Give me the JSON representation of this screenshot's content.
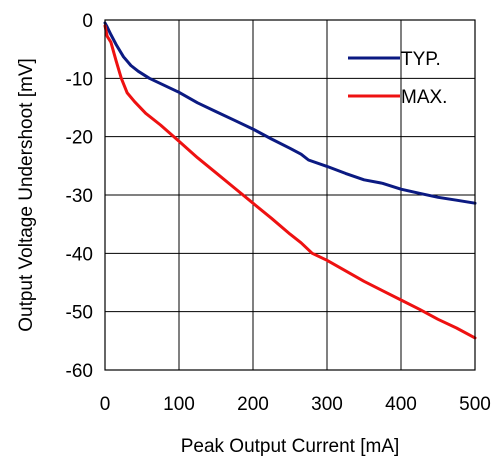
{
  "chart_data": {
    "type": "line",
    "title": "",
    "xlabel": "Peak Output Current [mA]",
    "ylabel": "Output Voltage Undershoot [mV]",
    "xlim": [
      0,
      500
    ],
    "ylim": [
      -60,
      0
    ],
    "xticks": [
      "0",
      "100",
      "200",
      "300",
      "400",
      "500"
    ],
    "yticks": [
      "0",
      "-10",
      "-20",
      "-30",
      "-40",
      "-50",
      "-60"
    ],
    "grid": true,
    "legend_position": "top-right",
    "series": [
      {
        "name": "TYP.",
        "color": "#0b1a82",
        "x": [
          0,
          3,
          8,
          15,
          25,
          35,
          45,
          60,
          80,
          100,
          125,
          150,
          175,
          200,
          225,
          250,
          265,
          275,
          300,
          325,
          350,
          375,
          400,
          425,
          450,
          475,
          500
        ],
        "y": [
          -0.5,
          -1.2,
          -2.5,
          -4.2,
          -6.3,
          -7.8,
          -8.8,
          -10.0,
          -11.2,
          -12.4,
          -14.2,
          -15.7,
          -17.2,
          -18.7,
          -20.4,
          -22.0,
          -23.0,
          -24.0,
          -25.1,
          -26.3,
          -27.4,
          -28.0,
          -29.0,
          -29.7,
          -30.4,
          -30.9,
          -31.4
        ]
      },
      {
        "name": "MAX.",
        "color": "#ee1111",
        "x": [
          0,
          3,
          8,
          15,
          22,
          30,
          40,
          55,
          75,
          100,
          125,
          150,
          175,
          200,
          225,
          250,
          265,
          280,
          300,
          325,
          350,
          375,
          400,
          425,
          450,
          475,
          500
        ],
        "y": [
          -1.0,
          -2.8,
          -3.8,
          -7.0,
          -10.0,
          -12.5,
          -14.0,
          -16.0,
          -18.0,
          -20.8,
          -23.6,
          -26.2,
          -28.8,
          -31.4,
          -34.0,
          -36.7,
          -38.2,
          -40.0,
          -41.2,
          -43.0,
          -44.8,
          -46.4,
          -48.0,
          -49.6,
          -51.3,
          -52.8,
          -54.5
        ]
      }
    ]
  }
}
